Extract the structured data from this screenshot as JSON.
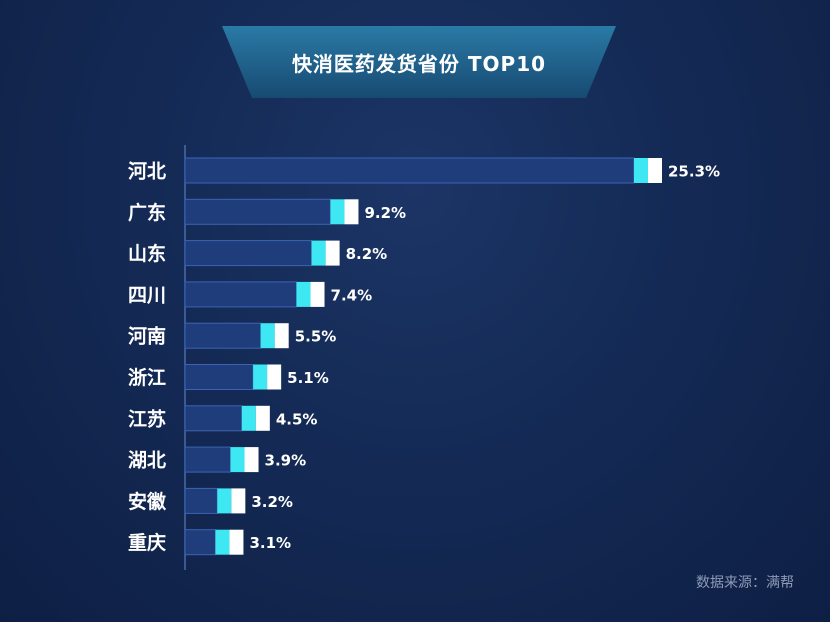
{
  "colors": {
    "background": "#142a55",
    "bar_fill": "#1f3d7a",
    "bar_border": "#3b63b5",
    "cap_cyan": "#3ee8f2",
    "cap_white": "#ffffff",
    "axis": "#4a6aa8",
    "banner": "#1f5f86"
  },
  "title": "快消医药发货省份 TOP10",
  "source": "数据来源：满帮",
  "chart_data": {
    "type": "bar",
    "orientation": "horizontal",
    "categories": [
      "河北",
      "广东",
      "山东",
      "四川",
      "河南",
      "浙江",
      "江苏",
      "湖北",
      "安徽",
      "重庆"
    ],
    "values": [
      25.3,
      9.2,
      8.2,
      7.4,
      5.5,
      5.1,
      4.5,
      3.9,
      3.2,
      3.1
    ],
    "value_labels": [
      "25.3%",
      "9.2%",
      "8.2%",
      "7.4%",
      "5.5%",
      "5.1%",
      "4.5%",
      "3.9%",
      "3.2%",
      "3.1%"
    ],
    "unit": "%",
    "grid": false,
    "legend": false
  }
}
